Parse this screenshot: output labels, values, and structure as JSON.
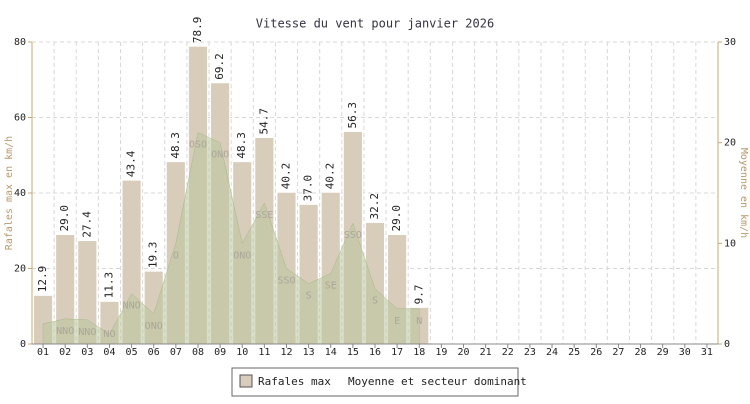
{
  "chart_data": {
    "type": "bar",
    "title": "Vitesse du vent pour janvier 2026",
    "y_label": "Rafales max en km/h",
    "y2_label": "Moyenne en km/h",
    "categories": [
      "01",
      "02",
      "03",
      "04",
      "05",
      "06",
      "07",
      "08",
      "09",
      "10",
      "11",
      "12",
      "13",
      "14",
      "15",
      "16",
      "17",
      "18",
      "19",
      "20",
      "21",
      "22",
      "23",
      "24",
      "25",
      "26",
      "27",
      "28",
      "29",
      "30",
      "31"
    ],
    "series": [
      {
        "name": "Rafales max",
        "type": "bar",
        "color": "#d8ccba",
        "values": [
          12.9,
          29.0,
          27.4,
          11.3,
          43.4,
          19.3,
          48.3,
          78.9,
          69.2,
          48.3,
          54.7,
          40.2,
          37.0,
          40.2,
          56.3,
          32.2,
          29.0,
          9.7,
          null,
          null,
          null,
          null,
          null,
          null,
          null,
          null,
          null,
          null,
          null,
          null,
          null
        ],
        "value_labels": [
          "12.9",
          "29.0",
          "27.4",
          "11.3",
          "43.4",
          "19.3",
          "48.3",
          "78.9",
          "69.2",
          "48.3",
          "54.7",
          "40.2",
          "37.0",
          "40.2",
          "56.3",
          "32.2",
          "29.0",
          "9.7",
          null,
          null,
          null,
          null,
          null,
          null,
          null,
          null,
          null,
          null,
          null,
          null,
          null
        ]
      },
      {
        "name": "Moyenne et secteur dominant",
        "type": "area",
        "axis": "y2",
        "color": "#b9c79c",
        "values": [
          2,
          2.5,
          2.4,
          1,
          5,
          3,
          10,
          21,
          20,
          10,
          14,
          7.5,
          6,
          7,
          12,
          5.5,
          3.5,
          3.5,
          null,
          null,
          null,
          null,
          null,
          null,
          null,
          null,
          null,
          null,
          null,
          null,
          null
        ],
        "labels": [
          null,
          "NNO",
          "NNO",
          "NO",
          "NNO",
          "ONO",
          "O",
          "OSO",
          "ONO",
          "ONO",
          "SSE",
          "SSO",
          "S",
          "SE",
          "SSO",
          "S",
          "E",
          "N",
          null,
          null,
          null,
          null,
          null,
          null,
          null,
          null,
          null,
          null,
          null,
          null,
          null
        ]
      }
    ],
    "ylim": [
      0,
      80
    ],
    "yticks": [
      0,
      20,
      40,
      60,
      80
    ],
    "y2lim": [
      0,
      30
    ],
    "y2ticks": [
      0,
      10,
      20,
      30
    ],
    "grid": true,
    "legend": "bottom"
  }
}
